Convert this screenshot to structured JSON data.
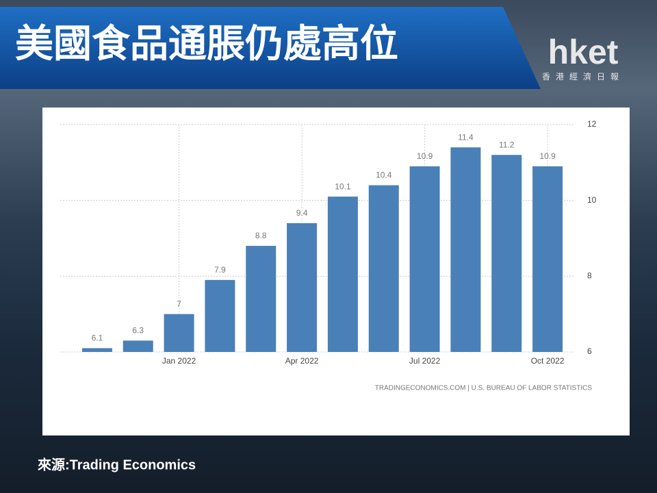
{
  "header": {
    "title": "美國食品通脹仍處高位",
    "logo": "hket",
    "logo_sub": "香港經濟日報"
  },
  "chart_data": {
    "type": "bar",
    "categories": [
      null,
      null,
      "Jan 2022",
      null,
      null,
      "Apr 2022",
      null,
      null,
      "Jul 2022",
      null,
      null,
      "Oct 2022"
    ],
    "values": [
      6.1,
      6.3,
      7,
      7.9,
      8.8,
      9.4,
      10.1,
      10.4,
      10.9,
      11.4,
      11.2,
      10.9
    ],
    "color": "#4a80b8",
    "ylim": [
      6,
      12
    ],
    "yticks": [
      6,
      8,
      10,
      12
    ],
    "grid": true,
    "source_note": "TRADINGECONOMICS.COM | U.S. BUREAU OF LABOR STATISTICS"
  },
  "footer": {
    "source": "來源:Trading Economics"
  }
}
